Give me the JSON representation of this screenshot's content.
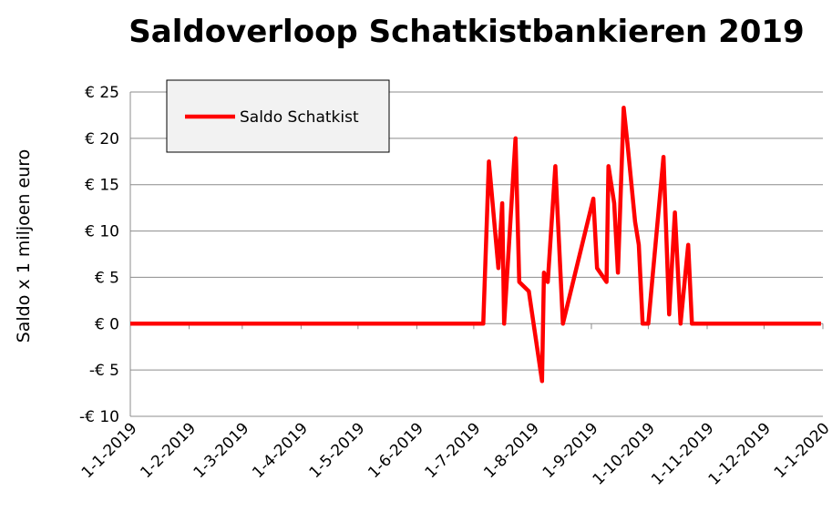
{
  "chart_data": {
    "type": "line",
    "title": "Saldoverloop Schatkistbankieren 2019",
    "y_label": "Saldo x 1 miljoen euro",
    "x": [
      "2019-01-01",
      "2019-07-06",
      "2019-07-09",
      "2019-07-14",
      "2019-07-16",
      "2019-07-17",
      "2019-07-23",
      "2019-07-25",
      "2019-07-30",
      "2019-08-06",
      "2019-08-07",
      "2019-08-09",
      "2019-08-13",
      "2019-08-17",
      "2019-09-02",
      "2019-09-04",
      "2019-09-09",
      "2019-09-10",
      "2019-09-13",
      "2019-09-15",
      "2019-09-18",
      "2019-09-20",
      "2019-09-24",
      "2019-09-26",
      "2019-09-28",
      "2019-10-01",
      "2019-10-09",
      "2019-10-12",
      "2019-10-15",
      "2019-10-18",
      "2019-10-22",
      "2019-10-24",
      "2019-12-31"
    ],
    "series": [
      {
        "name": "Saldo Schatkist",
        "color": "#ff0000",
        "values": [
          0,
          0,
          17.5,
          6,
          13,
          0,
          20,
          4.5,
          3.5,
          -6.2,
          5.5,
          4.5,
          17,
          0,
          13.5,
          6,
          4.5,
          17,
          13,
          5.5,
          23.3,
          19.5,
          11,
          8.5,
          0,
          0,
          18,
          1,
          12,
          0,
          8.5,
          0,
          0
        ]
      }
    ],
    "xlim": [
      "2019-01-01",
      "2020-01-01"
    ],
    "xticks": [
      {
        "value": "2019-01-01",
        "label": "1-1-2019"
      },
      {
        "value": "2019-02-01",
        "label": "1-2-2019"
      },
      {
        "value": "2019-03-01",
        "label": "1-3-2019"
      },
      {
        "value": "2019-04-01",
        "label": "1-4-2019"
      },
      {
        "value": "2019-05-01",
        "label": "1-5-2019"
      },
      {
        "value": "2019-06-01",
        "label": "1-6-2019"
      },
      {
        "value": "2019-07-01",
        "label": "1-7-2019"
      },
      {
        "value": "2019-08-01",
        "label": "1-8-2019"
      },
      {
        "value": "2019-09-01",
        "label": "1-9-2019"
      },
      {
        "value": "2019-10-01",
        "label": "1-10-2019"
      },
      {
        "value": "2019-11-01",
        "label": "1-11-2019"
      },
      {
        "value": "2019-12-01",
        "label": "1-12-2019"
      },
      {
        "value": "2020-01-01",
        "label": "1-1-2020"
      }
    ],
    "ylim": [
      -10,
      25
    ],
    "yticks": [
      {
        "value": -10,
        "label": "-€ 10"
      },
      {
        "value": -5,
        "label": "-€ 5"
      },
      {
        "value": 0,
        "label": "€ 0"
      },
      {
        "value": 5,
        "label": "€ 5"
      },
      {
        "value": 10,
        "label": "€ 10"
      },
      {
        "value": 15,
        "label": "€ 15"
      },
      {
        "value": 20,
        "label": "€ 20"
      },
      {
        "value": 25,
        "label": "€ 25"
      }
    ],
    "grid": true,
    "legend": "top-left"
  }
}
